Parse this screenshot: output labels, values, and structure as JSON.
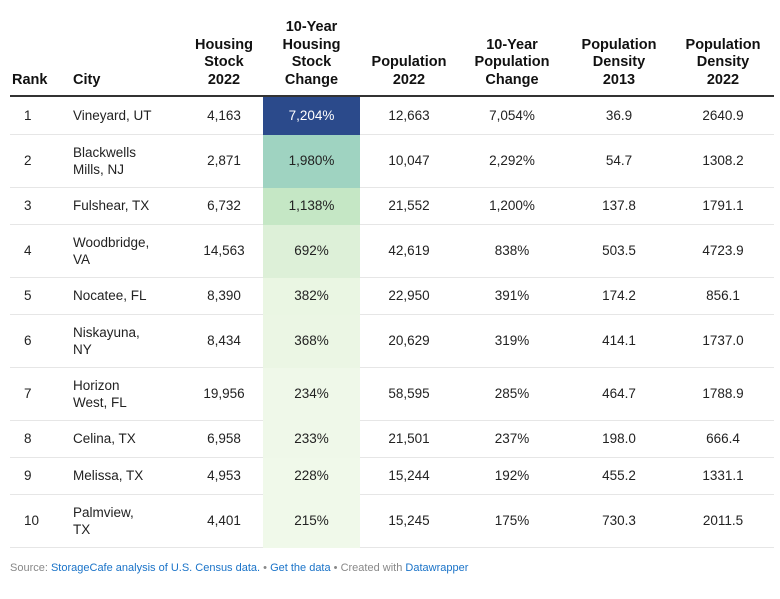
{
  "chart_data": {
    "type": "table",
    "columns": [
      "Rank",
      "City",
      "Housing Stock 2022",
      "10-Year Housing Stock Change",
      "Population 2022",
      "10-Year Population Change",
      "Population Density 2013",
      "Population Density 2022"
    ],
    "rows": [
      [
        "1",
        "Vineyard, UT",
        "4,163",
        "7,204%",
        "12,663",
        "7,054%",
        "36.9",
        "2640.9"
      ],
      [
        "2",
        "Blackwells Mills, NJ",
        "2,871",
        "1,980%",
        "10,047",
        "2,292%",
        "54.7",
        "1308.2"
      ],
      [
        "3",
        "Fulshear, TX",
        "6,732",
        "1,138%",
        "21,552",
        "1,200%",
        "137.8",
        "1791.1"
      ],
      [
        "4",
        "Woodbridge, VA",
        "14,563",
        "692%",
        "42,619",
        "838%",
        "503.5",
        "4723.9"
      ],
      [
        "5",
        "Nocatee, FL",
        "8,390",
        "382%",
        "22,950",
        "391%",
        "174.2",
        "856.1"
      ],
      [
        "6",
        "Niskayuna, NY",
        "8,434",
        "368%",
        "20,629",
        "319%",
        "414.1",
        "1737.0"
      ],
      [
        "7",
        "Horizon West, FL",
        "19,956",
        "234%",
        "58,595",
        "285%",
        "464.7",
        "1788.9"
      ],
      [
        "8",
        "Celina, TX",
        "6,958",
        "233%",
        "21,501",
        "237%",
        "198.0",
        "666.4"
      ],
      [
        "9",
        "Melissa, TX",
        "4,953",
        "228%",
        "15,244",
        "192%",
        "455.2",
        "1331.1"
      ],
      [
        "10",
        "Palmview, TX",
        "4,401",
        "215%",
        "15,245",
        "175%",
        "730.3",
        "2011.5"
      ]
    ],
    "heatmap_column": "10-Year Housing Stock Change",
    "heatmap_colors": [
      {
        "bg": "#2b4a8b",
        "fg": "#ffffff"
      },
      {
        "bg": "#9fd3c1",
        "fg": "#222222"
      },
      {
        "bg": "#c5e7c5",
        "fg": "#222222"
      },
      {
        "bg": "#ddf0d8",
        "fg": "#222222"
      },
      {
        "bg": "#eaf6e3",
        "fg": "#222222"
      },
      {
        "bg": "#ebf6e4",
        "fg": "#222222"
      },
      {
        "bg": "#eff8e9",
        "fg": "#222222"
      },
      {
        "bg": "#eff8e9",
        "fg": "#222222"
      },
      {
        "bg": "#f0f9ea",
        "fg": "#222222"
      },
      {
        "bg": "#f0f9ea",
        "fg": "#222222"
      }
    ]
  },
  "header_lines": {
    "rank": [
      "Rank"
    ],
    "city": [
      "City"
    ],
    "housing_stock": [
      "Housing",
      "Stock",
      "2022"
    ],
    "housing_change": [
      "10-Year",
      "Housing",
      "Stock",
      "Change"
    ],
    "population": [
      "Population",
      "2022"
    ],
    "population_change": [
      "10-Year",
      "Population",
      "Change"
    ],
    "density_2013": [
      "Population",
      "Density",
      "2013"
    ],
    "density_2022": [
      "Population",
      "Density",
      "2022"
    ]
  },
  "city_lines": [
    [
      "Vineyard, UT"
    ],
    [
      "Blackwells",
      "Mills, NJ"
    ],
    [
      "Fulshear, TX"
    ],
    [
      "Woodbridge,",
      "VA"
    ],
    [
      "Nocatee, FL"
    ],
    [
      "Niskayuna,",
      "NY"
    ],
    [
      "Horizon",
      "West, FL"
    ],
    [
      "Celina, TX"
    ],
    [
      "Melissa, TX"
    ],
    [
      "Palmview,",
      "TX"
    ]
  ],
  "footer": {
    "source_prefix": "Source: ",
    "source_link": "StorageCafe analysis of U.S. Census data.",
    "sep1": " • ",
    "get_data": "Get the data",
    "sep2": " • Created with ",
    "datawrapper": "Datawrapper"
  }
}
